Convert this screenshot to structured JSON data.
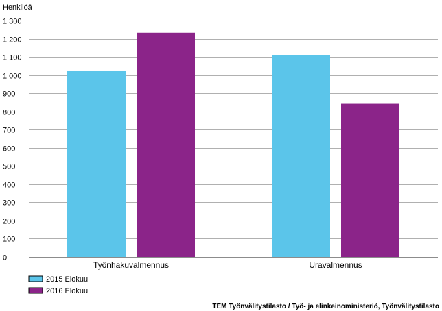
{
  "chart_data": {
    "type": "bar",
    "title": "",
    "ylabel": "Henkilöä",
    "xlabel": "",
    "categories": [
      "Työnhakuvalmennus",
      "Uravalmennus"
    ],
    "series": [
      {
        "name": "2015 Elokuu",
        "values": [
          1025,
          1108
        ],
        "color": "#5bc5ea"
      },
      {
        "name": "2016 Elokuu",
        "values": [
          1233,
          842
        ],
        "color": "#8b2489"
      }
    ],
    "yticks": [
      0,
      100,
      200,
      300,
      400,
      500,
      600,
      700,
      800,
      900,
      1000,
      1100,
      1200,
      1300
    ],
    "ytick_labels": [
      "0",
      "100",
      "200",
      "300",
      "400",
      "500",
      "600",
      "700",
      "800",
      "900",
      "1 000",
      "1 100",
      "1 200",
      "1 300"
    ],
    "ylim": [
      0,
      1300
    ],
    "grid": true,
    "legend_position": "bottom-left"
  },
  "source": "TEM Työnvälitystilasto / Työ- ja elinkeinoministeriö, Työnvälitystilasto"
}
